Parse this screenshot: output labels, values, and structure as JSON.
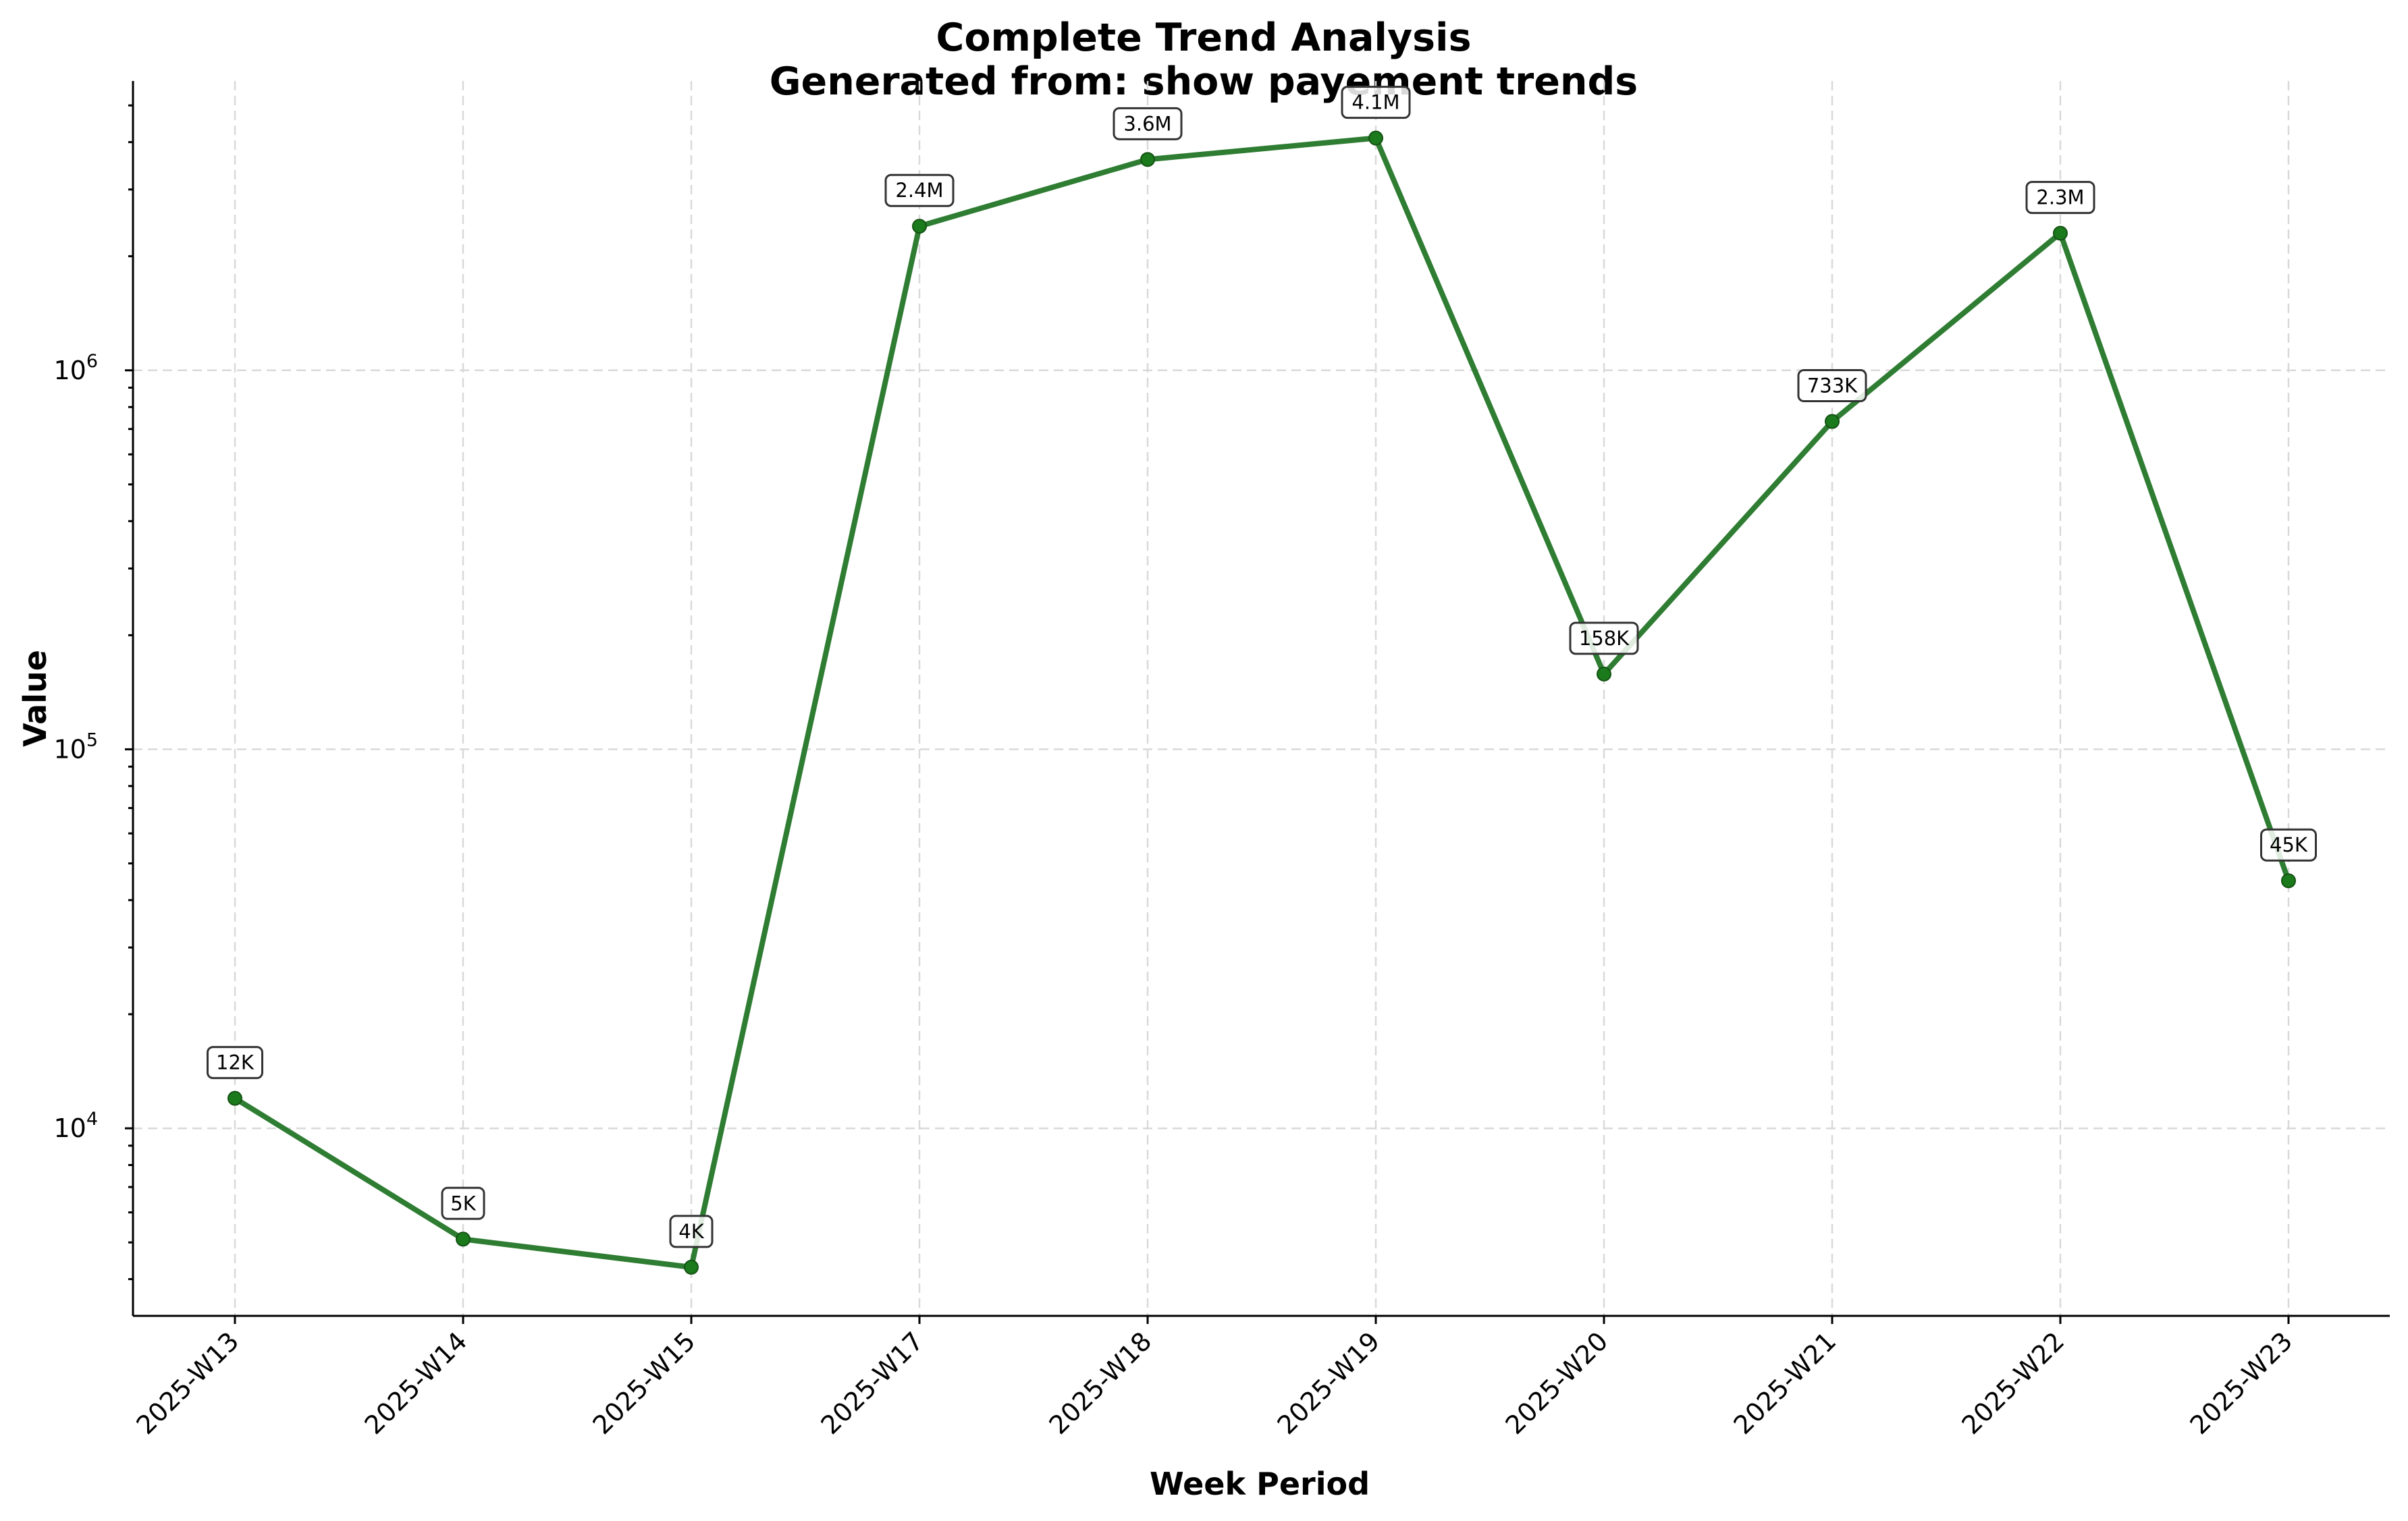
{
  "chart_data": {
    "type": "line",
    "title": "Complete Trend Analysis",
    "subtitle": "Generated from: show payement trends",
    "xlabel": "Week Period",
    "ylabel": "Value",
    "yscale": "log",
    "ylim": [
      3200,
      5800000
    ],
    "y_ticks": [
      {
        "value": 10000,
        "base": "10",
        "exp": "4"
      },
      {
        "value": 100000,
        "base": "10",
        "exp": "5"
      },
      {
        "value": 1000000,
        "base": "10",
        "exp": "6"
      }
    ],
    "grid": true,
    "categories": [
      "2025-W13",
      "2025-W14",
      "2025-W15",
      "2025-W17",
      "2025-W18",
      "2025-W19",
      "2025-W20",
      "2025-W21",
      "2025-W22",
      "2025-W23"
    ],
    "series": [
      {
        "values": [
          12000,
          5100,
          4300,
          2400000,
          3600000,
          4100000,
          158000,
          733000,
          2300000,
          45000
        ],
        "labels": [
          "12K",
          "5K",
          "4K",
          "2.4M",
          "3.6M",
          "4.1M",
          "158K",
          "733K",
          "2.3M",
          "45K"
        ],
        "color": "#2e7d32"
      }
    ]
  }
}
